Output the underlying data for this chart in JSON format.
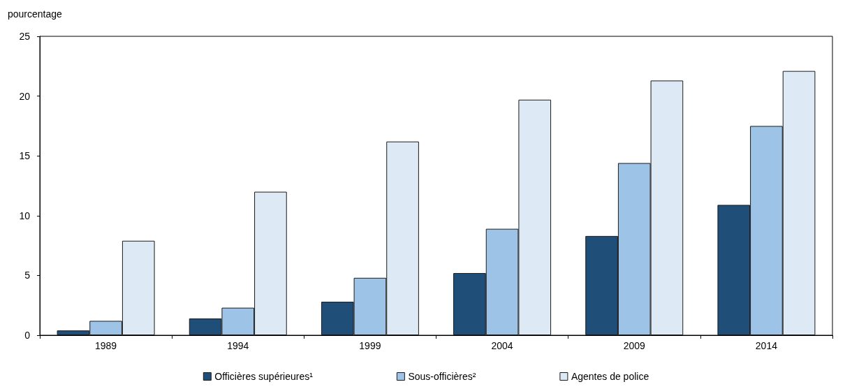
{
  "chart_data": {
    "type": "bar",
    "ylabel": "pourcentage",
    "categories": [
      "1989",
      "1994",
      "1999",
      "2004",
      "2009",
      "2014"
    ],
    "series": [
      {
        "name": "Officières supérieures¹",
        "color": "#1f4e79",
        "values": [
          0.4,
          1.4,
          2.8,
          5.2,
          8.3,
          10.9
        ]
      },
      {
        "name": "Sous-officières²",
        "color": "#9dc3e6",
        "values": [
          1.2,
          2.3,
          4.8,
          8.9,
          14.4,
          17.5
        ]
      },
      {
        "name": "Agentes de police",
        "color": "#dde9f5",
        "values": [
          7.9,
          12.0,
          16.2,
          19.7,
          21.3,
          22.1
        ]
      }
    ],
    "ylim": [
      0,
      25
    ],
    "yticks": [
      0,
      5,
      10,
      15,
      20,
      25
    ],
    "grid": false,
    "legend": "bottom"
  }
}
